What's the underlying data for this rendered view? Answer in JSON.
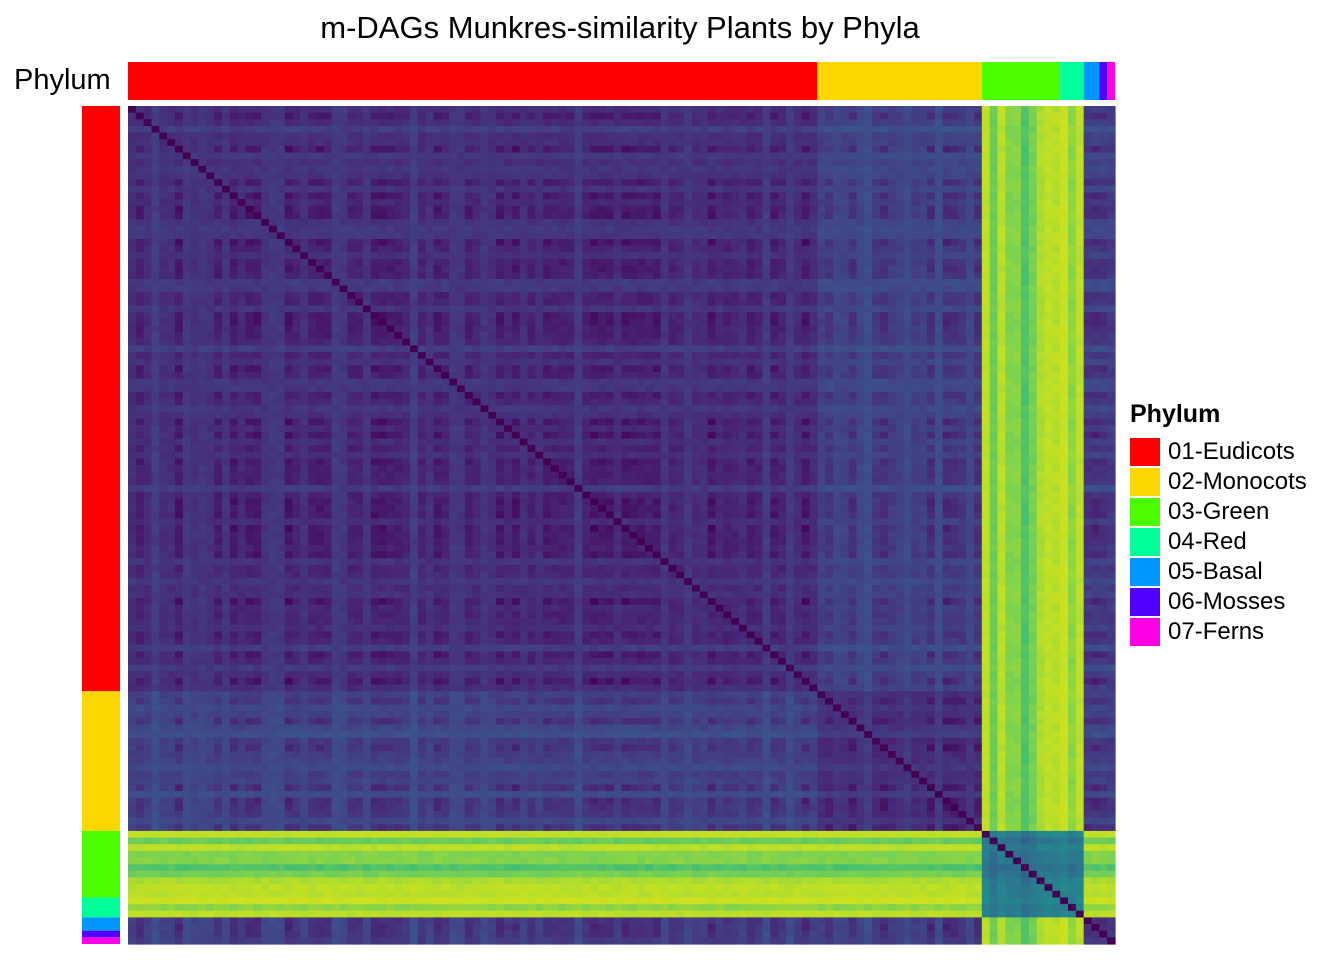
{
  "chart_data": {
    "type": "heatmap",
    "title": "m-DAGs Munkres-similarity  Plants by Phyla",
    "annotation_label": "Phylum",
    "legend_title": "Phylum",
    "colormap": "viridis",
    "groups": [
      {
        "name": "01-Eudicots",
        "color": "#FF0000",
        "count": 88
      },
      {
        "name": "02-Monocots",
        "color": "#FFD700",
        "count": 21
      },
      {
        "name": "03-Green",
        "color": "#4CFF00",
        "count": 10
      },
      {
        "name": "04-Red",
        "color": "#00FF99",
        "count": 3
      },
      {
        "name": "05-Basal",
        "color": "#0096FF",
        "count": 2
      },
      {
        "name": "06-Mosses",
        "color": "#5000FF",
        "count": 1
      },
      {
        "name": "07-Ferns",
        "color": "#FF00E6",
        "count": 1
      }
    ]
  }
}
